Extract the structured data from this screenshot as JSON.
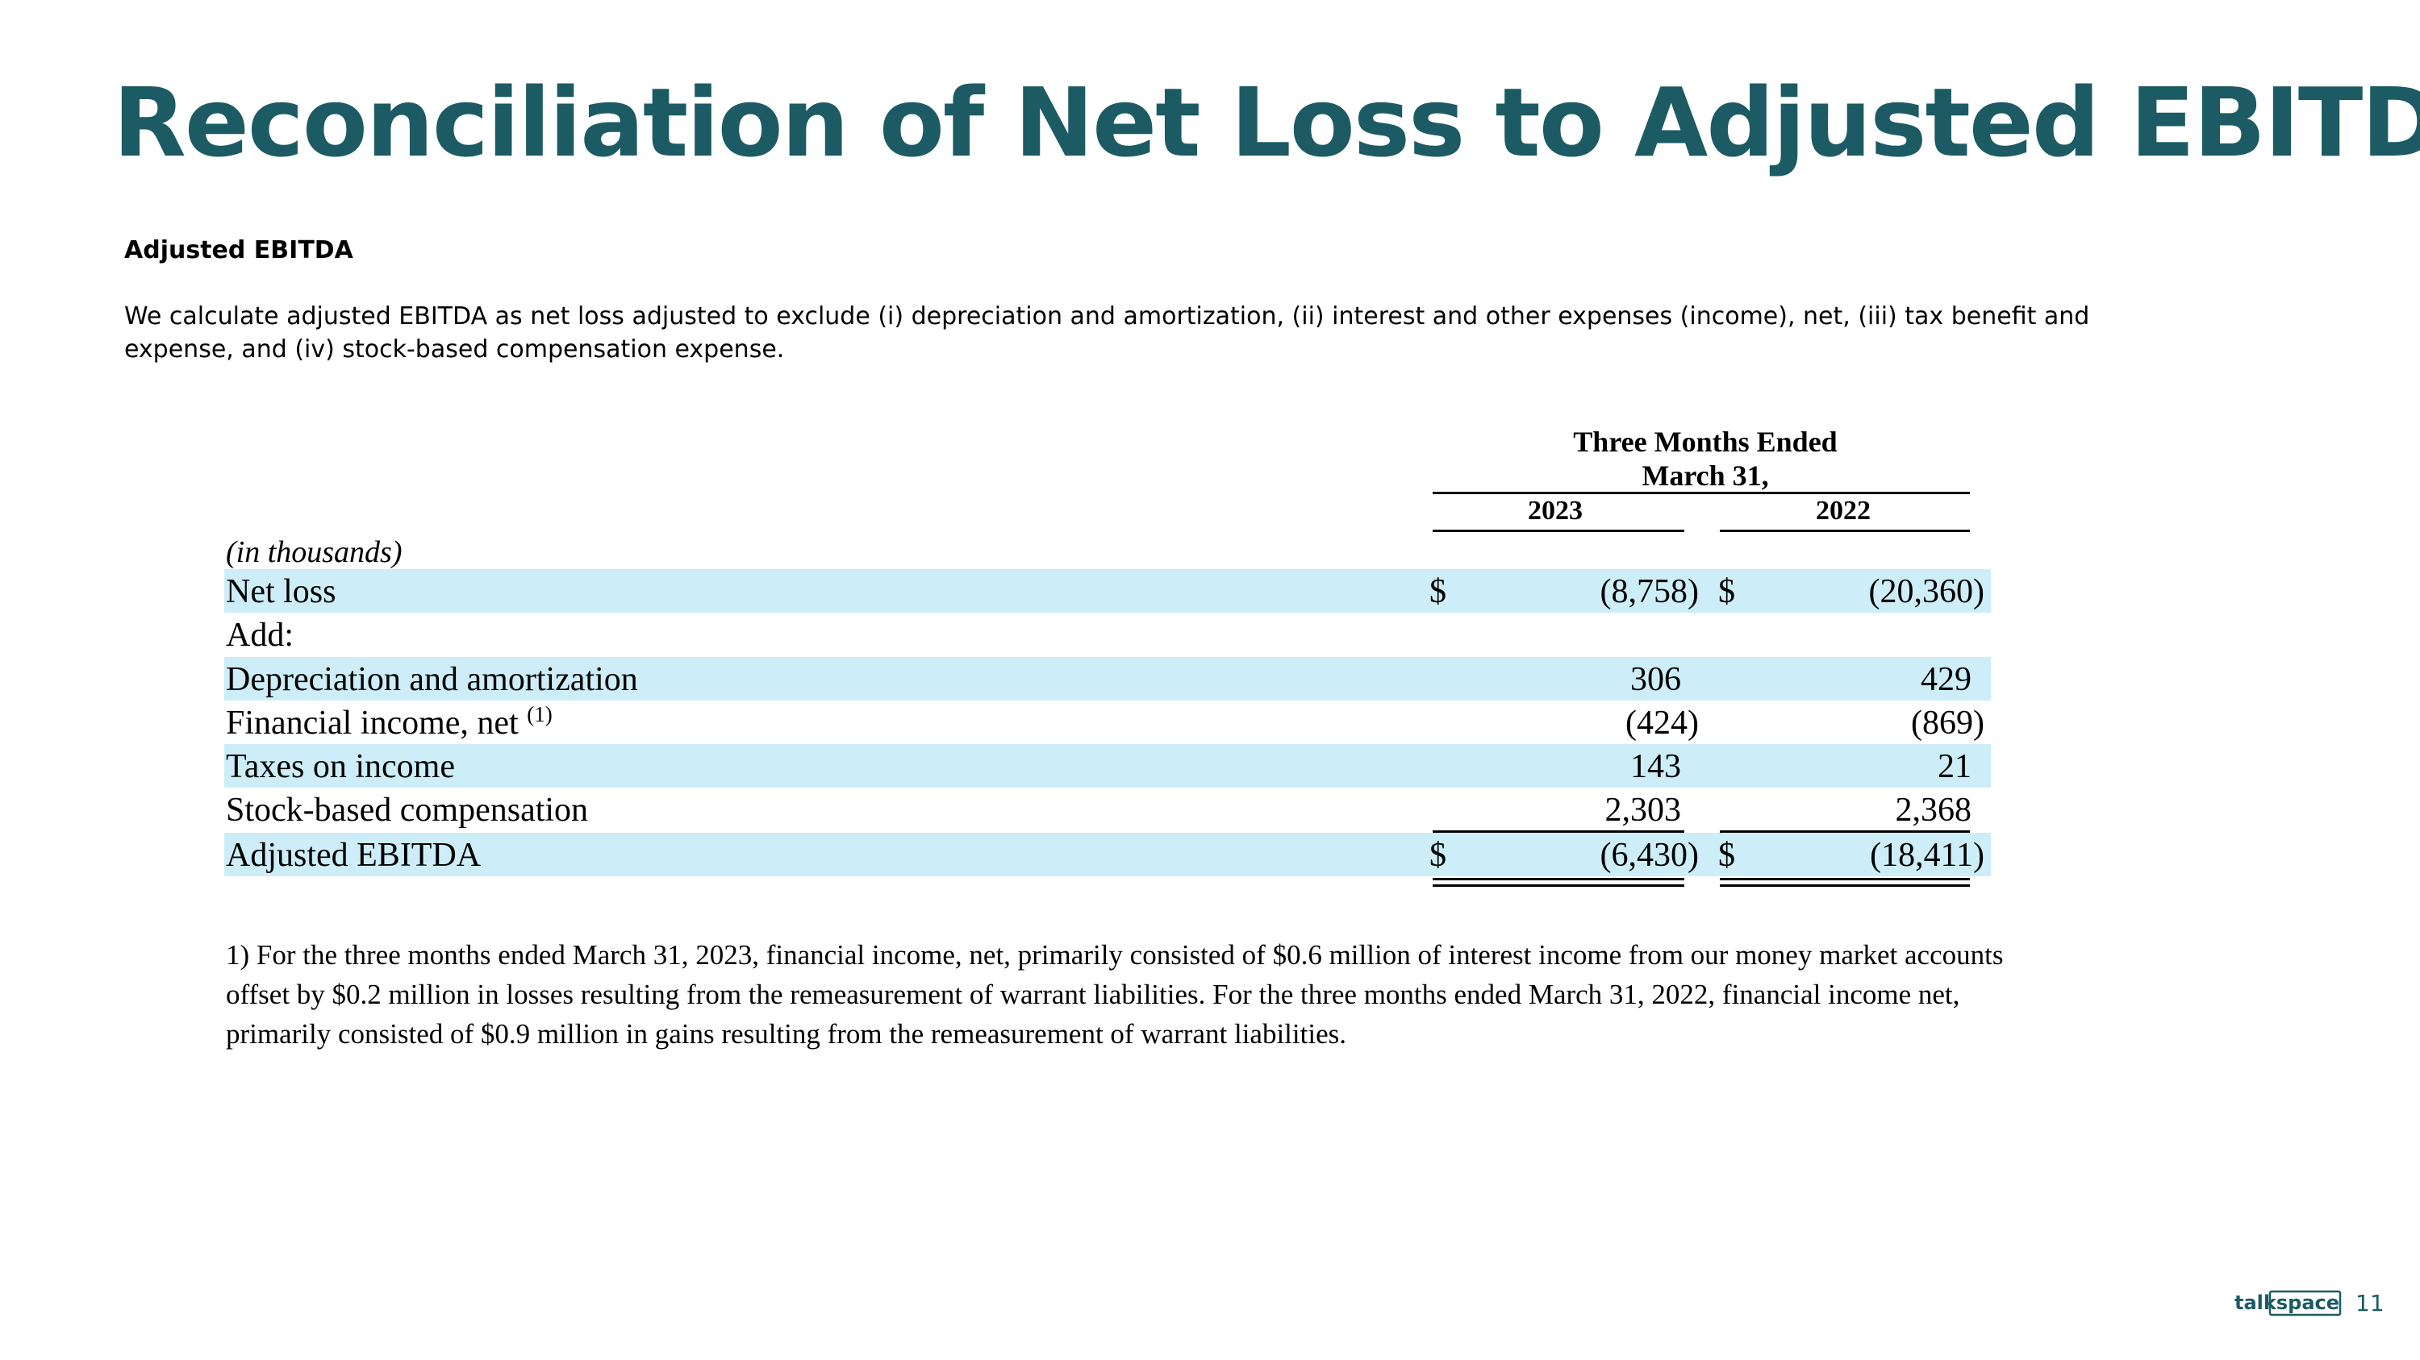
{
  "title": "Reconciliation of Net Loss to Adjusted EBITDA",
  "section": {
    "heading": "Adjusted EBITDA",
    "description": "We calculate adjusted EBITDA as net loss adjusted to exclude (i) depreciation and amortization, (ii) interest and other expenses (income), net, (iii) tax benefit and expense, and (iv) stock-based compensation expense."
  },
  "table": {
    "period_line1": "Three Months Ended",
    "period_line2": "March 31,",
    "columns": [
      "2023",
      "2022"
    ],
    "unit_label": "(in thousands)",
    "rows": [
      {
        "label": "Net loss",
        "sup": "",
        "currency": "$",
        "v2023": "(8,758)",
        "v2022": "(20,360)"
      },
      {
        "label": "Add:",
        "sup": "",
        "currency": "",
        "v2023": "",
        "v2022": ""
      },
      {
        "label": "Depreciation and amortization",
        "sup": "",
        "currency": "",
        "v2023": "306",
        "v2022": "429"
      },
      {
        "label": "Financial income, net",
        "sup": "(1)",
        "currency": "",
        "v2023": "(424)",
        "v2022": "(869)"
      },
      {
        "label": "Taxes on income",
        "sup": "",
        "currency": "",
        "v2023": "143",
        "v2022": "21"
      },
      {
        "label": "Stock-based compensation",
        "sup": "",
        "currency": "",
        "v2023": "2,303",
        "v2022": "2,368"
      },
      {
        "label": "Adjusted EBITDA",
        "sup": "",
        "currency": "$",
        "v2023": "(6,430)",
        "v2022": "(18,411)"
      }
    ]
  },
  "footnote": "1)  For the three months ended March 31, 2023, financial income, net, primarily consisted of $0.6 million of interest income from our money market accounts offset by $0.2 million in losses resulting from the remeasurement of warrant liabilities. For the three months ended March 31, 2022, financial income net, primarily consisted of $0.9 million in gains resulting from the remeasurement of warrant liabilities.",
  "footer": {
    "logo_text": "talkspace",
    "logo_icon": "talkspace-logo",
    "page_number": "11"
  },
  "colors": {
    "title": "#1c5b63",
    "row_shade": "#cdeef8"
  }
}
